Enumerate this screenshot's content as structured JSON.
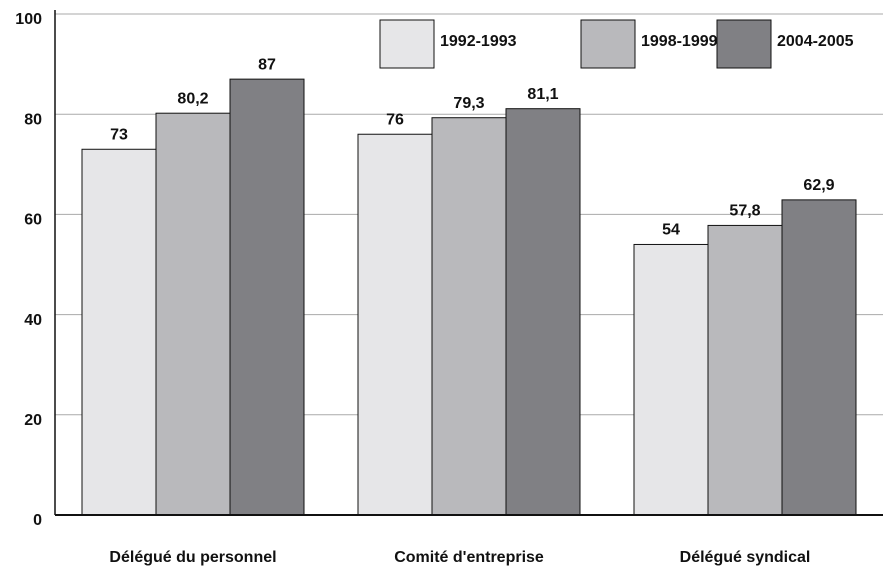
{
  "chart_data": {
    "type": "bar",
    "categories": [
      "Délégué du personnel",
      "Comité d'entreprise",
      "Délégué syndical"
    ],
    "series": [
      {
        "name": "1992-1993",
        "color": "#e6e6e8",
        "values": [
          73,
          76,
          54
        ],
        "value_labels": [
          "73",
          "76",
          "54"
        ]
      },
      {
        "name": "1998-1999",
        "color": "#b9b9bc",
        "values": [
          80.2,
          79.3,
          57.8
        ],
        "value_labels": [
          "80,2",
          "79,3",
          "57,8"
        ]
      },
      {
        "name": "2004-2005",
        "color": "#808084",
        "values": [
          87,
          81.1,
          62.9
        ],
        "value_labels": [
          "87",
          "81,1",
          "62,9"
        ]
      }
    ],
    "ylim": [
      0,
      100
    ],
    "yticks": [
      0,
      20,
      40,
      60,
      80,
      100
    ],
    "grid": true,
    "legend": "top-right"
  }
}
